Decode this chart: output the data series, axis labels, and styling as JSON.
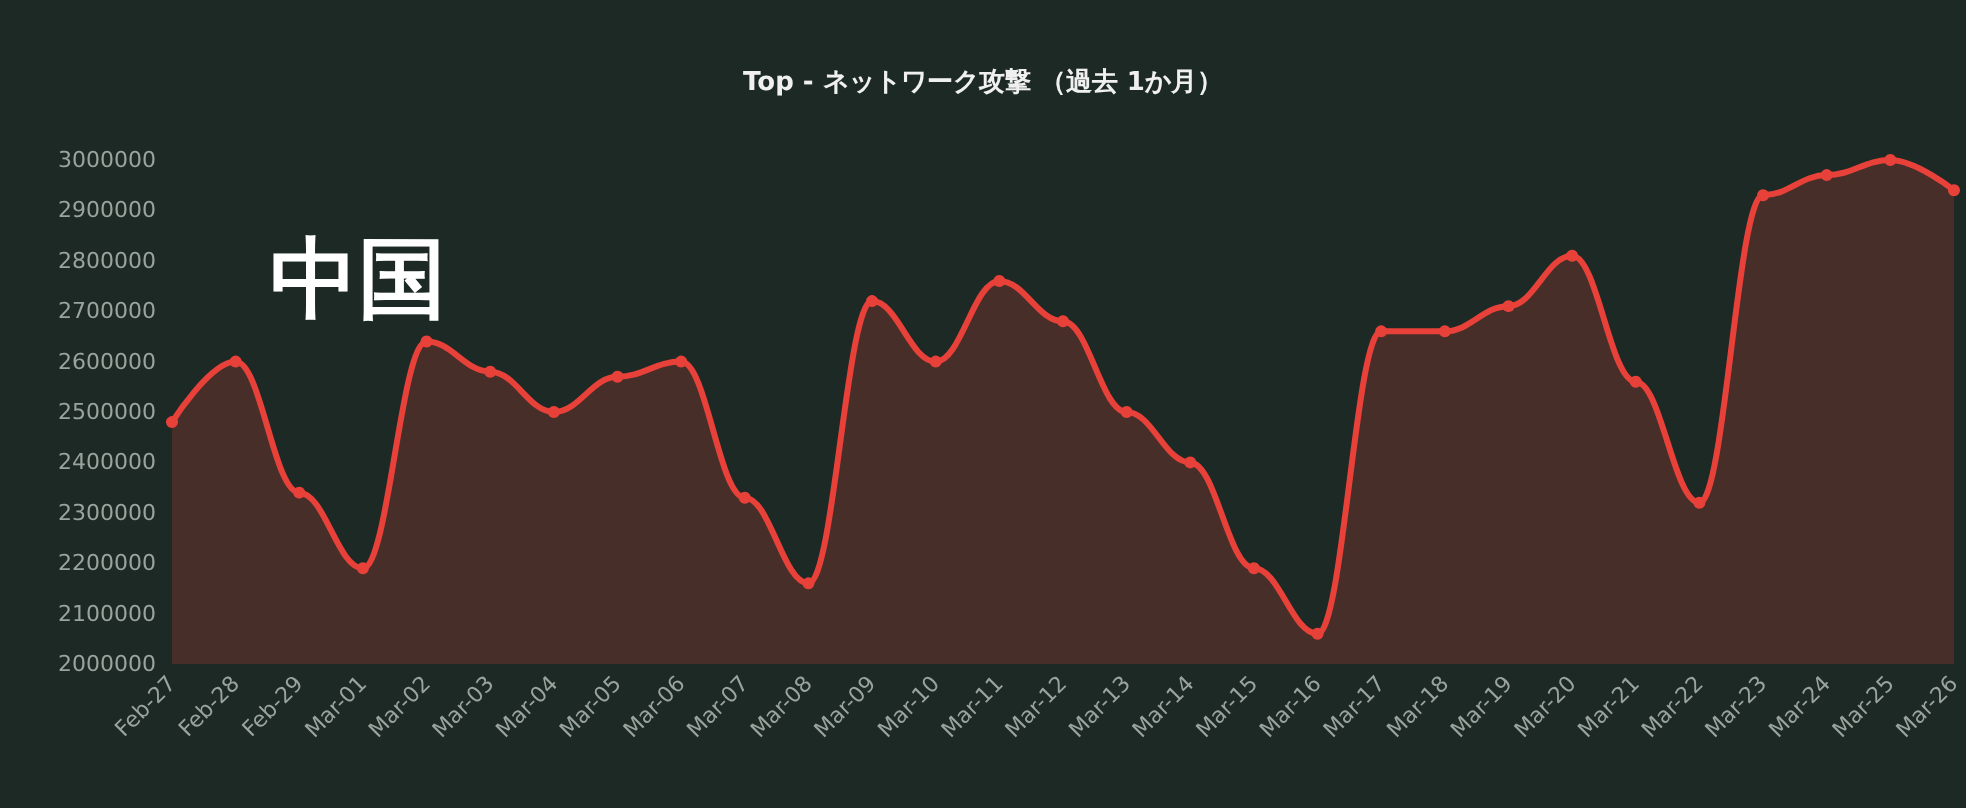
{
  "chart_data": {
    "type": "area",
    "title": "Top - ネットワーク攻撃 （過去 1か月）",
    "annotations": [
      "中国"
    ],
    "categories": [
      "Feb-27",
      "Feb-28",
      "Feb-29",
      "Mar-01",
      "Mar-02",
      "Mar-03",
      "Mar-04",
      "Mar-05",
      "Mar-06",
      "Mar-07",
      "Mar-08",
      "Mar-09",
      "Mar-10",
      "Mar-11",
      "Mar-12",
      "Mar-13",
      "Mar-14",
      "Mar-15",
      "Mar-16",
      "Mar-17",
      "Mar-18",
      "Mar-19",
      "Mar-20",
      "Mar-21",
      "Mar-22",
      "Mar-23",
      "Mar-24",
      "Mar-25",
      "Mar-26"
    ],
    "series": [
      {
        "color": "#e8413a",
        "values": [
          2480000,
          2600000,
          2340000,
          2190000,
          2640000,
          2580000,
          2500000,
          2570000,
          2600000,
          2330000,
          2160000,
          2720000,
          2600000,
          2760000,
          2680000,
          2500000,
          2400000,
          2190000,
          2060000,
          2660000,
          2660000,
          2710000,
          2810000,
          2560000,
          2320000,
          2930000,
          2970000,
          3000000,
          2940000
        ]
      }
    ],
    "ylim": [
      2000000,
      3000000
    ],
    "yticks": [
      2000000,
      2100000,
      2200000,
      2300000,
      2400000,
      2500000,
      2600000,
      2700000,
      2800000,
      2900000,
      3000000
    ],
    "grid": false,
    "marker": "circle",
    "line_style": "solid"
  }
}
